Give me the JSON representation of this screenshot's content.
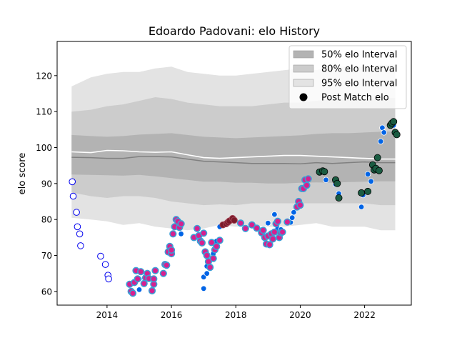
{
  "chart_data": {
    "type": "scatter",
    "title": "Edoardo Padovani: elo History",
    "xlabel": "",
    "ylabel": "elo score",
    "xlim": [
      2012.45,
      2023.45
    ],
    "ylim": [
      56.2,
      129.5
    ],
    "xticks": [
      2014,
      2016,
      2018,
      2020,
      2022
    ],
    "yticks": [
      60,
      70,
      80,
      90,
      100,
      110,
      120
    ],
    "legend_position": "top-right",
    "legend": [
      {
        "label": "50% elo Interval",
        "color": "#b3b3b3"
      },
      {
        "label": "80% elo Interval",
        "color": "#cccccc"
      },
      {
        "label": "95% elo Interval",
        "color": "#e3e3e3"
      },
      {
        "label": "Post Match elo",
        "color": "#000000"
      }
    ],
    "bands": {
      "x": [
        2012.9,
        2013.5,
        2014.0,
        2014.5,
        2015.0,
        2015.5,
        2016.0,
        2016.5,
        2017.0,
        2017.5,
        2018.0,
        2018.5,
        2019.0,
        2019.5,
        2020.0,
        2020.5,
        2021.0,
        2021.5,
        2022.0,
        2022.5,
        2022.95
      ],
      "median": [
        97.3,
        97.2,
        97.0,
        97.0,
        97.5,
        97.5,
        97.4,
        96.8,
        96.2,
        96.0,
        95.8,
        95.6,
        95.6,
        95.6,
        95.5,
        95.8,
        95.6,
        95.8,
        96.0,
        95.8,
        95.8
      ],
      "mean": [
        98.8,
        98.6,
        99.2,
        99.1,
        98.8,
        98.7,
        98.8,
        98.0,
        97.2,
        97.0,
        97.2,
        97.4,
        97.6,
        97.8,
        97.8,
        97.6,
        97.4,
        97.2,
        97.0,
        96.8,
        96.8
      ],
      "q50": [
        [
          92.5,
          103.5
        ],
        [
          92.4,
          103.2
        ],
        [
          92.3,
          103.0
        ],
        [
          92.2,
          103.2
        ],
        [
          92.4,
          103.6
        ],
        [
          92.0,
          103.8
        ],
        [
          91.5,
          104.0
        ],
        [
          91.0,
          103.5
        ],
        [
          90.5,
          103.0
        ],
        [
          90.5,
          102.8
        ],
        [
          90.2,
          102.6
        ],
        [
          90.2,
          102.8
        ],
        [
          90.0,
          103.0
        ],
        [
          90.0,
          103.2
        ],
        [
          90.2,
          103.4
        ],
        [
          90.3,
          103.8
        ],
        [
          90.2,
          104.0
        ],
        [
          90.4,
          104.0
        ],
        [
          90.5,
          104.2
        ],
        [
          90.6,
          104.4
        ],
        [
          90.6,
          104.5
        ]
      ],
      "q80": [
        [
          87.5,
          110.0
        ],
        [
          86.5,
          110.5
        ],
        [
          86.0,
          111.5
        ],
        [
          86.5,
          112.0
        ],
        [
          86.5,
          113.0
        ],
        [
          86.0,
          114.0
        ],
        [
          85.0,
          113.5
        ],
        [
          84.5,
          112.5
        ],
        [
          84.0,
          112.0
        ],
        [
          84.2,
          111.5
        ],
        [
          84.0,
          111.5
        ],
        [
          84.5,
          111.5
        ],
        [
          84.5,
          112.0
        ],
        [
          84.5,
          112.5
        ],
        [
          84.5,
          112.5
        ],
        [
          84.5,
          113.0
        ],
        [
          84.5,
          113.5
        ],
        [
          84.5,
          113.5
        ],
        [
          84.5,
          113.5
        ],
        [
          84.0,
          113.8
        ],
        [
          84.0,
          113.8
        ]
      ],
      "q95": [
        [
          80.5,
          117.0
        ],
        [
          80.0,
          119.5
        ],
        [
          79.5,
          120.5
        ],
        [
          78.5,
          121.0
        ],
        [
          79.0,
          121.0
        ],
        [
          78.0,
          122.0
        ],
        [
          77.5,
          122.5
        ],
        [
          77.0,
          121.0
        ],
        [
          77.5,
          120.5
        ],
        [
          78.5,
          120.0
        ],
        [
          78.0,
          120.0
        ],
        [
          78.5,
          120.5
        ],
        [
          78.0,
          121.0
        ],
        [
          78.0,
          121.5
        ],
        [
          78.5,
          122.0
        ],
        [
          79.0,
          121.5
        ],
        [
          78.0,
          122.5
        ],
        [
          78.0,
          122.5
        ],
        [
          78.0,
          122.5
        ],
        [
          77.0,
          123.0
        ],
        [
          77.0,
          123.0
        ]
      ]
    },
    "series": [
      {
        "style": "open-blue",
        "points": [
          [
            2012.92,
            90.5
          ],
          [
            2012.95,
            86.5
          ],
          [
            2013.05,
            82.0
          ],
          [
            2013.08,
            78.0
          ],
          [
            2013.15,
            76.0
          ],
          [
            2013.18,
            72.7
          ],
          [
            2013.8,
            69.8
          ],
          [
            2013.95,
            67.5
          ],
          [
            2014.03,
            64.5
          ],
          [
            2014.05,
            63.5
          ]
        ]
      },
      {
        "style": "blue",
        "points": [
          [
            2015.0,
            63.5
          ],
          [
            2015.0,
            60.5
          ],
          [
            2016.3,
            76.0
          ],
          [
            2017.0,
            60.8
          ],
          [
            2017.0,
            64.0
          ],
          [
            2017.1,
            65.0
          ],
          [
            2017.1,
            67.0
          ],
          [
            2017.3,
            70.5
          ],
          [
            2017.4,
            74.0
          ],
          [
            2017.5,
            78.0
          ],
          [
            2019.0,
            79.0
          ],
          [
            2019.2,
            81.4
          ],
          [
            2019.3,
            77.5
          ],
          [
            2019.4,
            77.2
          ],
          [
            2019.7,
            79.2
          ],
          [
            2019.75,
            80.5
          ],
          [
            2019.8,
            82.0
          ],
          [
            2019.9,
            83.5
          ],
          [
            2020.8,
            91.0
          ],
          [
            2021.1,
            89.8
          ],
          [
            2021.2,
            87.2
          ],
          [
            2021.9,
            83.5
          ],
          [
            2021.95,
            86.8
          ],
          [
            2022.1,
            87.8
          ],
          [
            2022.1,
            92.6
          ],
          [
            2022.2,
            90.6
          ],
          [
            2022.5,
            101.7
          ],
          [
            2022.55,
            105.5
          ],
          [
            2022.6,
            104.2
          ],
          [
            2022.9,
            106.2
          ]
        ]
      },
      {
        "style": "purple",
        "points": [
          [
            2014.7,
            62.0
          ],
          [
            2014.75,
            60.0
          ],
          [
            2014.8,
            59.5
          ],
          [
            2014.85,
            62.5
          ],
          [
            2014.9,
            65.8
          ],
          [
            2014.95,
            63.5
          ],
          [
            2015.05,
            65.5
          ],
          [
            2015.15,
            62.2
          ],
          [
            2015.2,
            63.8
          ],
          [
            2015.25,
            65.0
          ],
          [
            2015.3,
            63.6
          ],
          [
            2015.4,
            60.2
          ],
          [
            2015.45,
            62.0
          ],
          [
            2015.45,
            63.5
          ],
          [
            2015.5,
            65.8
          ],
          [
            2015.75,
            65.0
          ],
          [
            2015.8,
            67.5
          ],
          [
            2015.85,
            67.3
          ],
          [
            2015.9,
            71.0
          ],
          [
            2015.95,
            72.5
          ],
          [
            2016.0,
            70.5
          ],
          [
            2016.0,
            71.5
          ],
          [
            2016.05,
            76.0
          ],
          [
            2016.1,
            78.0
          ],
          [
            2016.15,
            80.0
          ],
          [
            2016.2,
            79.5
          ],
          [
            2016.25,
            77.8
          ],
          [
            2016.3,
            78.8
          ],
          [
            2016.7,
            75.0
          ],
          [
            2016.8,
            77.5
          ],
          [
            2016.85,
            75.5
          ],
          [
            2016.9,
            74.0
          ],
          [
            2016.95,
            73.5
          ],
          [
            2017.0,
            76.2
          ],
          [
            2017.05,
            71.0
          ],
          [
            2017.1,
            70.0
          ],
          [
            2017.15,
            68.3
          ],
          [
            2017.2,
            66.7
          ],
          [
            2017.25,
            73.6
          ],
          [
            2017.3,
            69.2
          ],
          [
            2017.35,
            71.6
          ],
          [
            2017.4,
            72.5
          ],
          [
            2017.5,
            74.2
          ],
          [
            2018.15,
            79.0
          ],
          [
            2018.3,
            77.5
          ],
          [
            2018.5,
            78.5
          ],
          [
            2018.65,
            77.6
          ],
          [
            2018.8,
            76.3
          ],
          [
            2018.85,
            77.0
          ],
          [
            2018.9,
            75.0
          ],
          [
            2018.95,
            73.2
          ],
          [
            2019.0,
            75.4
          ],
          [
            2019.05,
            73.0
          ],
          [
            2019.1,
            76.0
          ],
          [
            2019.15,
            74.6
          ],
          [
            2019.2,
            76.5
          ],
          [
            2019.25,
            78.8
          ],
          [
            2019.3,
            79.5
          ],
          [
            2019.35,
            75.0
          ],
          [
            2019.4,
            76.3
          ],
          [
            2019.45,
            76.5
          ],
          [
            2019.6,
            79.3
          ],
          [
            2019.9,
            83.5
          ],
          [
            2019.95,
            85.0
          ],
          [
            2020.0,
            84.0
          ],
          [
            2020.05,
            88.6
          ],
          [
            2020.1,
            88.6
          ],
          [
            2020.15,
            91.0
          ],
          [
            2020.2,
            89.5
          ],
          [
            2020.25,
            91.3
          ]
        ]
      },
      {
        "style": "maroon",
        "points": [
          [
            2017.6,
            78.5
          ],
          [
            2017.7,
            78.8
          ],
          [
            2017.75,
            79.2
          ],
          [
            2017.8,
            79.6
          ],
          [
            2017.9,
            80.3
          ],
          [
            2017.95,
            79.8
          ]
        ]
      },
      {
        "style": "green",
        "points": [
          [
            2020.6,
            93.2
          ],
          [
            2020.7,
            93.5
          ],
          [
            2020.75,
            93.3
          ],
          [
            2021.1,
            91.0
          ],
          [
            2021.15,
            90.0
          ],
          [
            2021.2,
            86.0
          ],
          [
            2021.9,
            87.4
          ],
          [
            2022.1,
            87.8
          ],
          [
            2022.25,
            95.2
          ],
          [
            2022.3,
            93.8
          ],
          [
            2022.35,
            94.2
          ],
          [
            2022.4,
            97.2
          ],
          [
            2022.45,
            93.6
          ],
          [
            2022.8,
            106.2
          ],
          [
            2022.85,
            106.8
          ],
          [
            2022.9,
            107.2
          ],
          [
            2022.95,
            104.2
          ],
          [
            2023.0,
            103.6
          ]
        ]
      }
    ]
  }
}
